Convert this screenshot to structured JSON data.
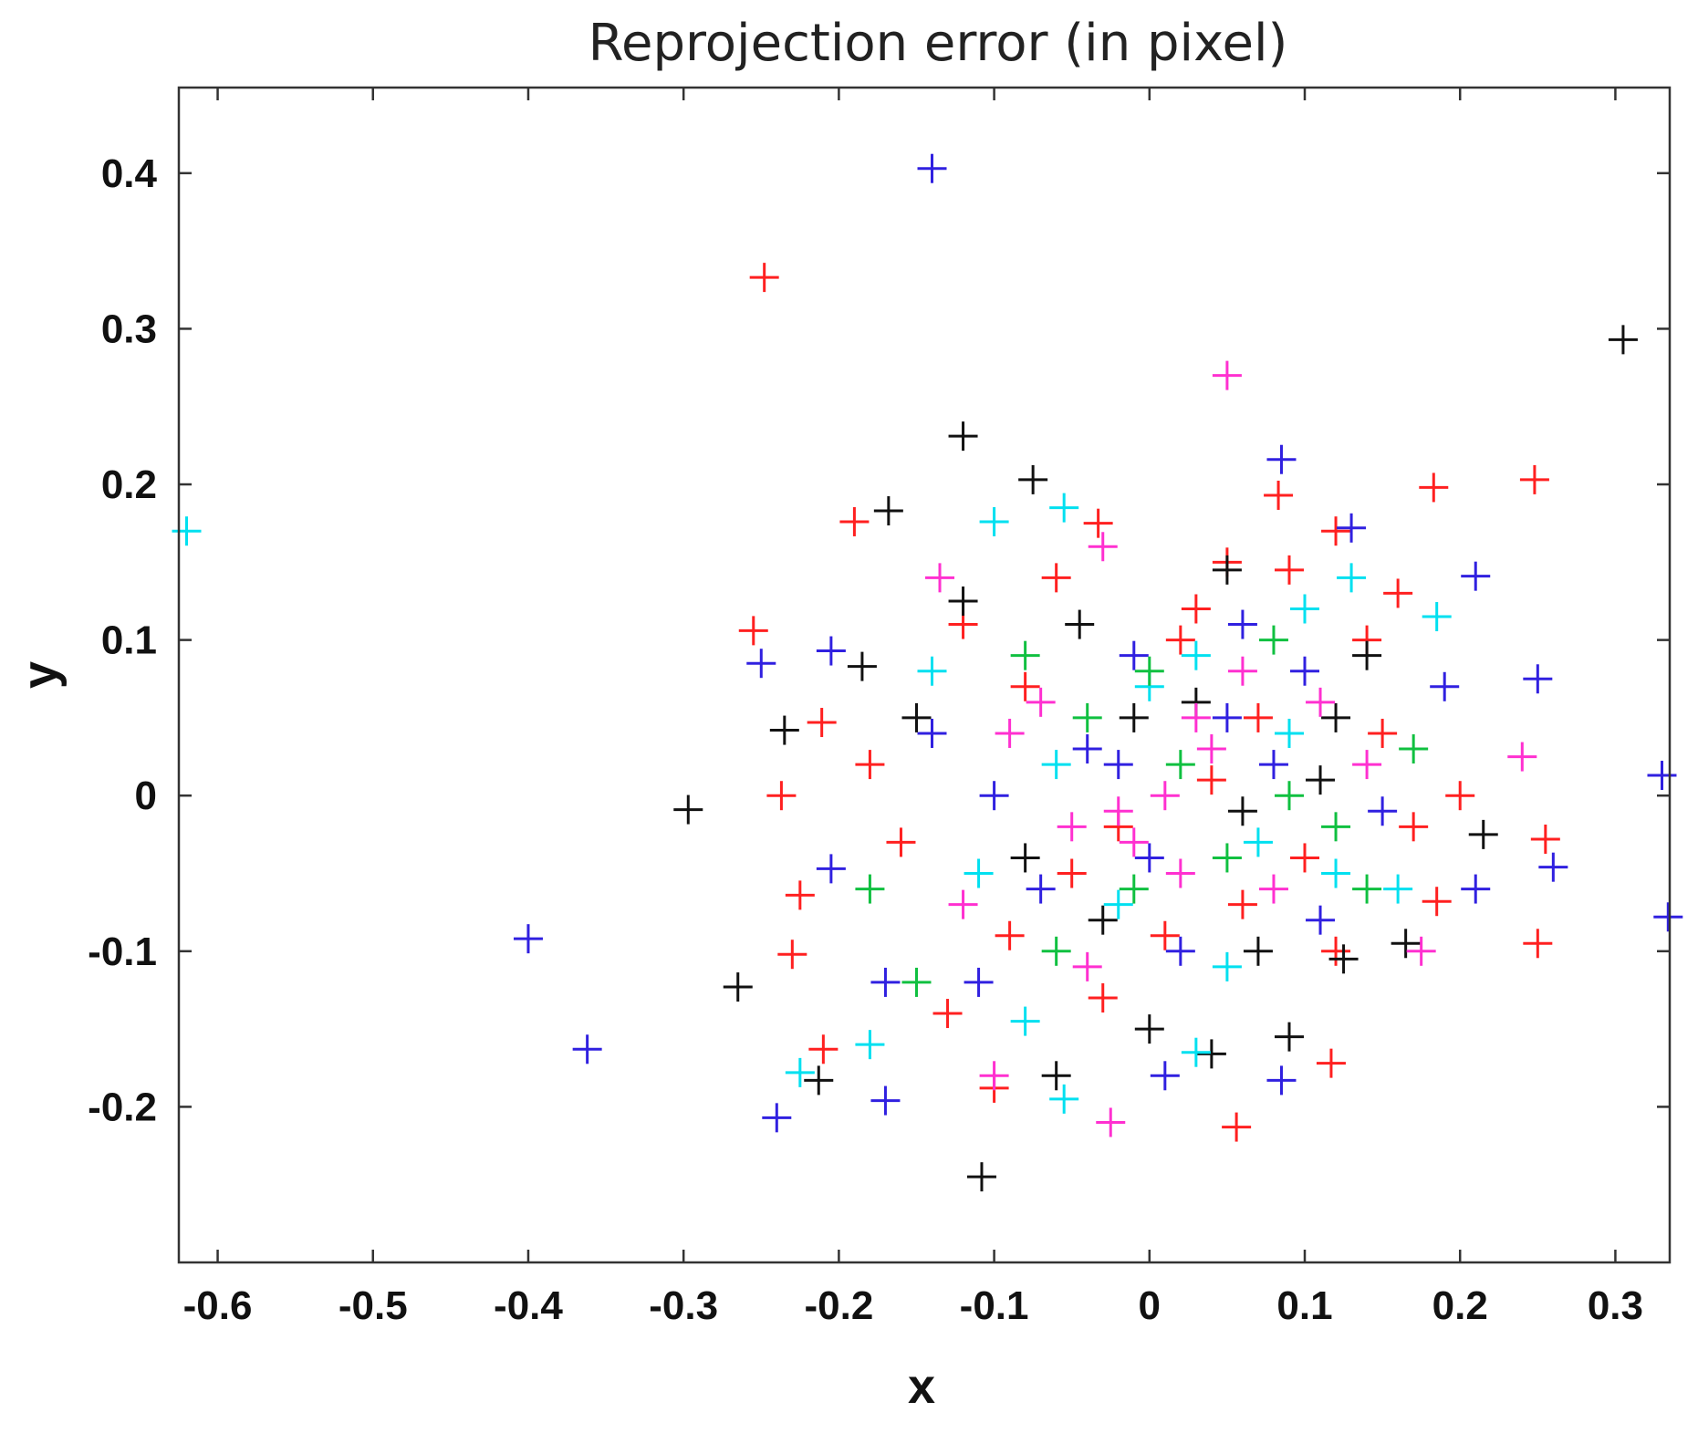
{
  "chart_data": {
    "type": "scatter",
    "title": "Reprojection error (in pixel)",
    "xlabel": "x",
    "ylabel": "y",
    "xlim": [
      -0.625,
      0.335
    ],
    "ylim": [
      -0.3,
      0.455
    ],
    "xticks": [
      "-0.6",
      "-0.5",
      "-0.4",
      "-0.3",
      "-0.2",
      "-0.1",
      "0",
      "0.1",
      "0.2",
      "0.3"
    ],
    "yticks": [
      "-0.2",
      "-0.1",
      "0",
      "0.1",
      "0.2",
      "0.3",
      "0.4"
    ],
    "xtick_values": [
      -0.6,
      -0.5,
      -0.4,
      -0.3,
      -0.2,
      -0.1,
      0,
      0.1,
      0.2,
      0.3
    ],
    "ytick_values": [
      -0.2,
      -0.1,
      0,
      0.1,
      0.2,
      0.3,
      0.4
    ],
    "marker": "+",
    "grid": false,
    "legend": "none",
    "series": [
      {
        "color": "#ff2020",
        "points": [
          [
            -0.248,
            0.333
          ],
          [
            -0.255,
            0.106
          ],
          [
            -0.19,
            0.176
          ],
          [
            -0.033,
            0.175
          ],
          [
            0.183,
            0.198
          ],
          [
            0.248,
            0.203
          ],
          [
            0.083,
            0.193
          ],
          [
            -0.237,
            0.0
          ],
          [
            -0.211,
            0.047
          ],
          [
            -0.225,
            -0.064
          ],
          [
            -0.23,
            -0.102
          ],
          [
            -0.21,
            -0.163
          ],
          [
            -0.1,
            -0.188
          ],
          [
            0.056,
            -0.213
          ],
          [
            0.117,
            -0.172
          ],
          [
            0.255,
            -0.028
          ],
          [
            0.25,
            -0.095
          ],
          [
            0.185,
            -0.068
          ],
          [
            0.12,
            0.17
          ],
          [
            -0.12,
            0.11
          ],
          [
            -0.08,
            0.07
          ],
          [
            0.02,
            0.1
          ],
          [
            0.07,
            0.05
          ],
          [
            0.15,
            0.04
          ],
          [
            -0.05,
            -0.05
          ],
          [
            0.01,
            -0.09
          ],
          [
            0.1,
            -0.04
          ],
          [
            -0.13,
            -0.14
          ],
          [
            0.16,
            0.13
          ],
          [
            0.05,
            0.15
          ],
          [
            -0.03,
            -0.13
          ],
          [
            0.09,
            0.145
          ],
          [
            -0.06,
            0.14
          ],
          [
            0.12,
            -0.1
          ],
          [
            -0.16,
            -0.03
          ],
          [
            0.14,
            0.1
          ],
          [
            0.2,
            0.0
          ],
          [
            -0.09,
            -0.09
          ],
          [
            0.04,
            0.01
          ],
          [
            -0.02,
            -0.02
          ],
          [
            0.06,
            -0.07
          ],
          [
            -0.18,
            0.02
          ],
          [
            0.17,
            -0.02
          ],
          [
            0.03,
            0.12
          ]
        ]
      },
      {
        "color": "#3020e0",
        "points": [
          [
            -0.14,
            0.403
          ],
          [
            -0.4,
            -0.092
          ],
          [
            -0.362,
            -0.163
          ],
          [
            -0.24,
            -0.207
          ],
          [
            -0.17,
            -0.196
          ],
          [
            0.085,
            0.216
          ],
          [
            0.21,
            0.141
          ],
          [
            0.33,
            0.013
          ],
          [
            0.334,
            -0.078
          ],
          [
            0.26,
            -0.046
          ],
          [
            0.25,
            0.075
          ],
          [
            -0.25,
            0.085
          ],
          [
            -0.205,
            0.093
          ],
          [
            -0.205,
            -0.047
          ],
          [
            0.085,
            -0.183
          ],
          [
            0.01,
            -0.18
          ],
          [
            0.13,
            0.172
          ],
          [
            -0.11,
            -0.12
          ],
          [
            0.05,
            0.05
          ],
          [
            -0.02,
            0.02
          ],
          [
            0.1,
            0.08
          ],
          [
            -0.07,
            -0.06
          ],
          [
            0.15,
            -0.01
          ],
          [
            -0.14,
            0.04
          ],
          [
            0.02,
            -0.1
          ],
          [
            0.08,
            0.02
          ],
          [
            -0.01,
            0.09
          ],
          [
            0.21,
            -0.06
          ],
          [
            -0.17,
            -0.12
          ],
          [
            0.19,
            0.07
          ],
          [
            0.0,
            -0.04
          ],
          [
            0.06,
            0.11
          ],
          [
            -0.04,
            0.03
          ],
          [
            0.11,
            -0.08
          ],
          [
            -0.1,
            0.0
          ]
        ]
      },
      {
        "color": "#111111",
        "points": [
          [
            -0.12,
            0.231
          ],
          [
            -0.075,
            0.203
          ],
          [
            -0.168,
            0.183
          ],
          [
            -0.297,
            -0.009
          ],
          [
            -0.265,
            -0.123
          ],
          [
            -0.213,
            -0.183
          ],
          [
            -0.108,
            -0.245
          ],
          [
            -0.06,
            -0.18
          ],
          [
            0.04,
            -0.166
          ],
          [
            0.09,
            -0.155
          ],
          [
            0.305,
            0.293
          ],
          [
            0.05,
            0.145
          ],
          [
            -0.235,
            0.042
          ],
          [
            -0.185,
            0.083
          ],
          [
            0.215,
            -0.025
          ],
          [
            0.165,
            -0.095
          ],
          [
            0.125,
            -0.105
          ],
          [
            -0.12,
            0.125
          ],
          [
            -0.045,
            0.11
          ],
          [
            0.03,
            0.06
          ],
          [
            -0.08,
            -0.04
          ],
          [
            0.0,
            -0.15
          ],
          [
            0.11,
            0.01
          ],
          [
            -0.01,
            0.05
          ],
          [
            0.06,
            -0.01
          ],
          [
            0.14,
            0.09
          ],
          [
            -0.15,
            0.05
          ],
          [
            0.07,
            -0.1
          ],
          [
            -0.03,
            -0.08
          ],
          [
            0.12,
            0.05
          ]
        ]
      },
      {
        "color": "#00e0f0",
        "points": [
          [
            -0.62,
            0.17
          ],
          [
            -0.1,
            0.176
          ],
          [
            -0.055,
            0.185
          ],
          [
            -0.055,
            -0.195
          ],
          [
            -0.225,
            -0.178
          ],
          [
            -0.18,
            -0.16
          ],
          [
            0.185,
            0.115
          ],
          [
            0.13,
            0.14
          ],
          [
            0.03,
            -0.165
          ],
          [
            -0.08,
            -0.145
          ],
          [
            0.16,
            -0.06
          ],
          [
            0.03,
            0.09
          ],
          [
            -0.11,
            -0.05
          ],
          [
            0.07,
            -0.03
          ],
          [
            -0.02,
            -0.07
          ],
          [
            0.1,
            0.12
          ],
          [
            -0.14,
            0.08
          ],
          [
            0.05,
            -0.11
          ],
          [
            -0.06,
            0.02
          ],
          [
            0.12,
            -0.05
          ],
          [
            0.0,
            0.07
          ],
          [
            0.09,
            0.04
          ]
        ]
      },
      {
        "color": "#ff30d0",
        "points": [
          [
            0.05,
            0.27
          ],
          [
            -0.025,
            -0.21
          ],
          [
            -0.1,
            -0.18
          ],
          [
            -0.135,
            0.14
          ],
          [
            -0.03,
            0.16
          ],
          [
            0.24,
            0.025
          ],
          [
            0.175,
            -0.1
          ],
          [
            -0.02,
            -0.01
          ],
          [
            0.04,
            0.03
          ],
          [
            -0.07,
            0.06
          ],
          [
            0.08,
            -0.06
          ],
          [
            0.01,
            0.0
          ],
          [
            -0.01,
            -0.03
          ],
          [
            0.06,
            0.08
          ],
          [
            -0.12,
            -0.07
          ],
          [
            0.14,
            0.02
          ],
          [
            -0.04,
            -0.11
          ],
          [
            0.11,
            0.06
          ],
          [
            0.02,
            -0.05
          ],
          [
            -0.09,
            0.04
          ],
          [
            0.03,
            0.05
          ],
          [
            -0.05,
            -0.02
          ]
        ]
      },
      {
        "color": "#10c040",
        "points": [
          [
            -0.18,
            -0.06
          ],
          [
            -0.15,
            -0.12
          ],
          [
            0.0,
            0.08
          ],
          [
            0.05,
            -0.04
          ],
          [
            -0.04,
            0.05
          ],
          [
            0.09,
            0.0
          ],
          [
            -0.08,
            0.09
          ],
          [
            0.14,
            -0.06
          ],
          [
            0.02,
            0.02
          ],
          [
            -0.01,
            -0.06
          ],
          [
            0.17,
            0.03
          ],
          [
            -0.06,
            -0.1
          ],
          [
            0.08,
            0.1
          ],
          [
            0.12,
            -0.02
          ]
        ]
      }
    ]
  }
}
